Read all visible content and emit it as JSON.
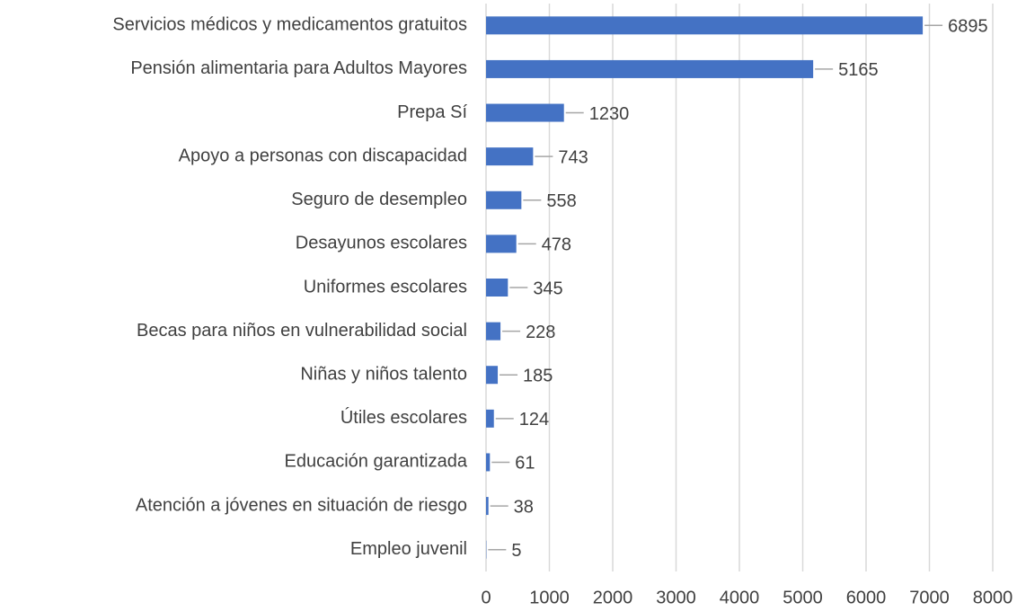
{
  "chart_data": {
    "type": "bar",
    "orientation": "horizontal",
    "categories": [
      "Servicios médicos y medicamentos gratuitos",
      "Pensión alimentaria para Adultos Mayores",
      "Prepa Sí",
      "Apoyo a personas con discapacidad",
      "Seguro de desempleo",
      "Desayunos escolares",
      "Uniformes escolares",
      "Becas para niños en vulnerabilidad social",
      "Niñas y niños talento",
      "Útiles escolares",
      "Educación garantizada",
      "Atención a jóvenes en situación de riesgo",
      "Empleo juvenil"
    ],
    "values": [
      6895,
      5165,
      1230,
      743,
      558,
      478,
      345,
      228,
      185,
      124,
      61,
      38,
      5
    ],
    "color": "#4472c4",
    "xlim": [
      0,
      8000
    ],
    "xticks": [
      0,
      1000,
      2000,
      3000,
      4000,
      5000,
      6000,
      7000,
      8000
    ],
    "grid": true
  }
}
